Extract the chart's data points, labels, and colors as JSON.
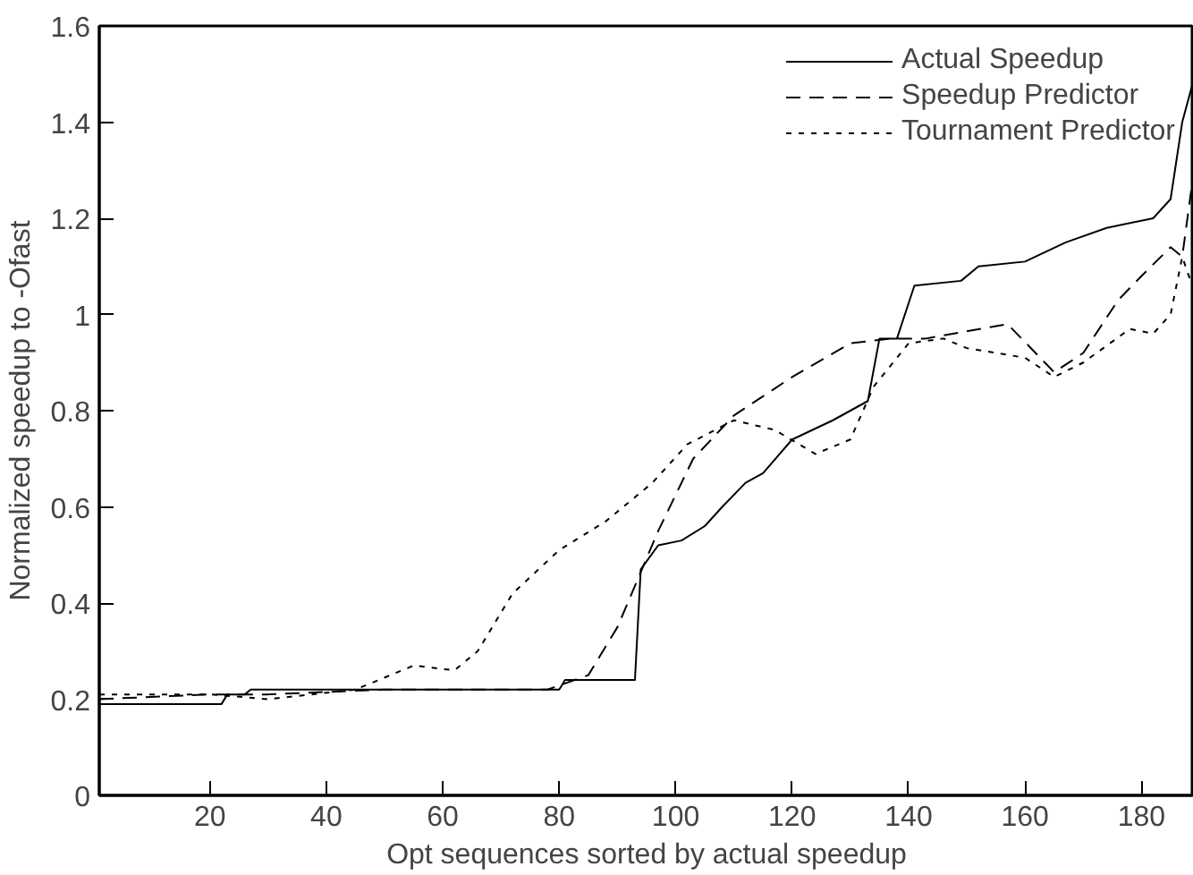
{
  "chart_data": {
    "type": "line",
    "xlabel": "Opt sequences sorted by actual speedup",
    "ylabel": "Normalized speedup to -Ofast",
    "xlim": [
      1,
      189
    ],
    "ylim": [
      0,
      1.6
    ],
    "xticks": [
      20,
      40,
      60,
      80,
      100,
      120,
      140,
      160,
      180
    ],
    "yticks": [
      0,
      0.2,
      0.4,
      0.6,
      0.8,
      {
        "value": 1,
        "label": "1"
      },
      1.2,
      1.4,
      1.6
    ],
    "legend": "top right",
    "grid": false,
    "marker": "none",
    "series": [
      {
        "name": "Actual Speedup",
        "color": "#000000",
        "line_style": "solid",
        "x": [
          1,
          22,
          23,
          26,
          27,
          80,
          81,
          93,
          94,
          97,
          101,
          105,
          108,
          112,
          115,
          120,
          127,
          133,
          135,
          138,
          141,
          149,
          152,
          160,
          167,
          174,
          182,
          185,
          187,
          189
        ],
        "values": [
          0.19,
          0.19,
          0.21,
          0.21,
          0.22,
          0.22,
          0.24,
          0.24,
          0.47,
          0.52,
          0.53,
          0.56,
          0.6,
          0.65,
          0.67,
          0.74,
          0.78,
          0.82,
          0.95,
          0.95,
          1.06,
          1.07,
          1.1,
          1.11,
          1.15,
          1.18,
          1.2,
          1.24,
          1.4,
          1.49
        ]
      },
      {
        "name": "Speedup Predictor",
        "color": "#000000",
        "line_style": "dashed",
        "x": [
          1,
          20,
          30,
          50,
          78,
          85,
          90,
          97,
          103,
          110,
          120,
          130,
          137,
          143,
          157,
          165,
          170,
          176,
          180,
          185,
          187,
          189
        ],
        "values": [
          0.2,
          0.21,
          0.21,
          0.22,
          0.22,
          0.25,
          0.35,
          0.55,
          0.7,
          0.79,
          0.87,
          0.94,
          0.95,
          0.95,
          0.98,
          0.88,
          0.92,
          1.03,
          1.08,
          1.14,
          1.12,
          1.3
        ]
      },
      {
        "name": "Tournament Predictor",
        "color": "#000000",
        "line_style": "dotted",
        "x": [
          1,
          20,
          30,
          45,
          55,
          62,
          66,
          72,
          80,
          88,
          96,
          102,
          110,
          117,
          124,
          130,
          134,
          140,
          146,
          150,
          160,
          165,
          170,
          178,
          182,
          185,
          187,
          189
        ],
        "values": [
          0.21,
          0.21,
          0.2,
          0.22,
          0.27,
          0.26,
          0.3,
          0.42,
          0.51,
          0.57,
          0.65,
          0.73,
          0.78,
          0.76,
          0.71,
          0.74,
          0.85,
          0.94,
          0.95,
          0.93,
          0.91,
          0.87,
          0.9,
          0.97,
          0.96,
          1.0,
          1.12,
          1.05
        ]
      }
    ]
  }
}
